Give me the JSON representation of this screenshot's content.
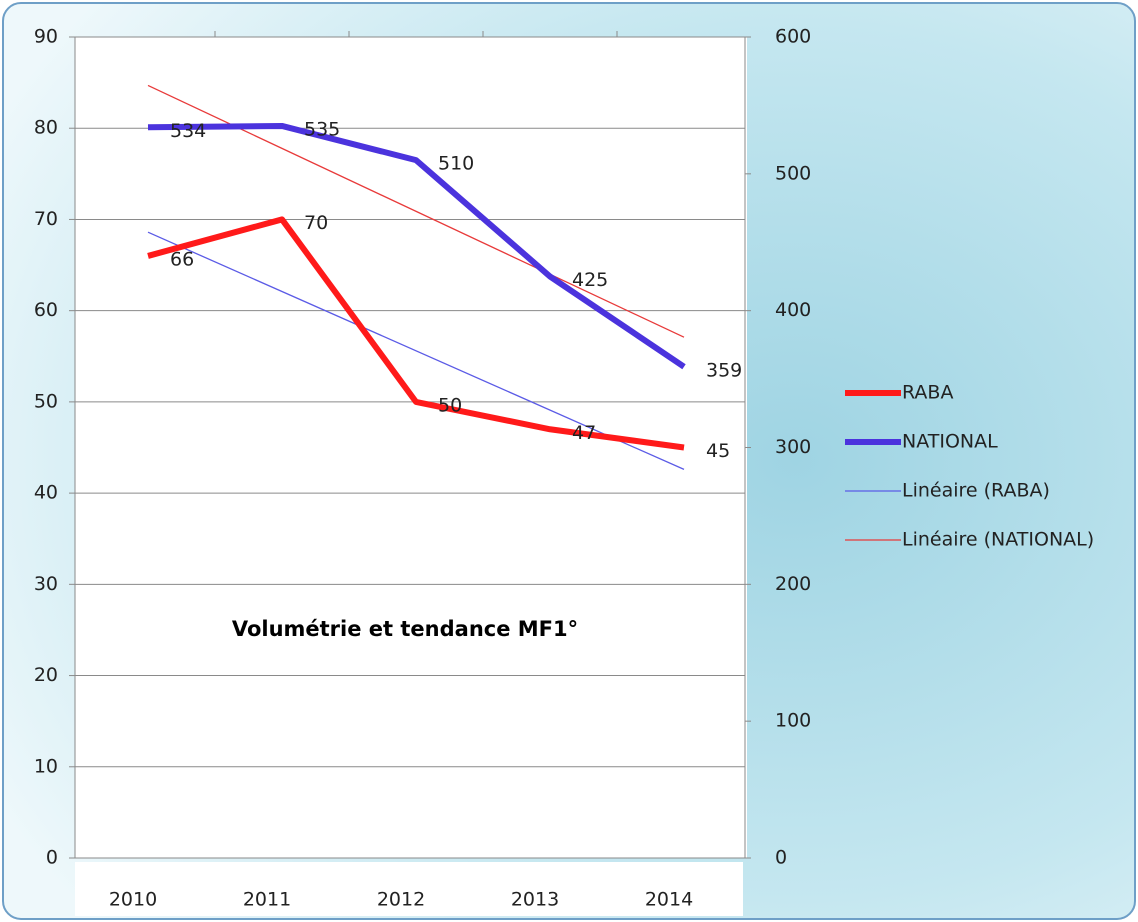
{
  "chart_data": {
    "type": "line",
    "title": "Volumétrie et tendance MF1°",
    "categories": [
      "2010",
      "2011",
      "2012",
      "2013",
      "2014"
    ],
    "series": [
      {
        "name": "RABA",
        "color": "#ff1a1a",
        "values": [
          66,
          70,
          50,
          47,
          45
        ]
      },
      {
        "name": "NATIONAL",
        "color": "#4b33dd",
        "axis": "y2",
        "values": [
          534,
          535,
          510,
          425,
          359
        ]
      }
    ],
    "trendlines": [
      {
        "name": "Linéaire (RABA)",
        "of": "RABA",
        "color": "#5b5be6"
      },
      {
        "name": "Linéaire (NATIONAL)",
        "of": "NATIONAL",
        "color": "#e83a3a"
      }
    ],
    "ylim": [
      0,
      90
    ],
    "yticks": [
      0,
      10,
      20,
      30,
      40,
      50,
      60,
      70,
      80,
      90
    ],
    "y2lim": [
      0,
      600
    ],
    "y2ticks": [
      0,
      100,
      200,
      300,
      400,
      500,
      600
    ],
    "grid": true,
    "legend": "right"
  }
}
